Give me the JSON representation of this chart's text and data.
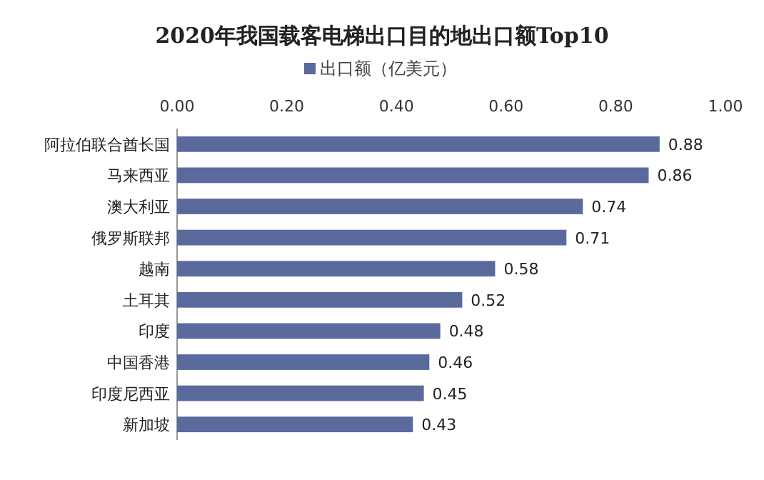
{
  "chart_data": {
    "type": "bar",
    "orientation": "horizontal",
    "title": "2020年我国载客电梯出口目的地出口额Top10",
    "categories": [
      "阿拉伯联合酋长国",
      "马来西亚",
      "澳大利亚",
      "俄罗斯联邦",
      "越南",
      "土耳其",
      "印度",
      "中国香港",
      "印度尼西亚",
      "新加坡"
    ],
    "series": [
      {
        "name": "出口额（亿美元）",
        "color": "#5a6a9c",
        "values": [
          0.88,
          0.86,
          0.74,
          0.71,
          0.58,
          0.52,
          0.48,
          0.46,
          0.45,
          0.43
        ]
      }
    ],
    "xlim": [
      0,
      1
    ],
    "xticks": [
      {
        "value": 0,
        "label": "0.00"
      },
      {
        "value": 0.2,
        "label": "0.20"
      },
      {
        "value": 0.4,
        "label": "0.40"
      },
      {
        "value": 0.6,
        "label": "0.60"
      },
      {
        "value": 0.8,
        "label": "0.80"
      },
      {
        "value": 1,
        "label": "1.00"
      }
    ],
    "data_labels": true,
    "legend": "top",
    "grid": false
  }
}
